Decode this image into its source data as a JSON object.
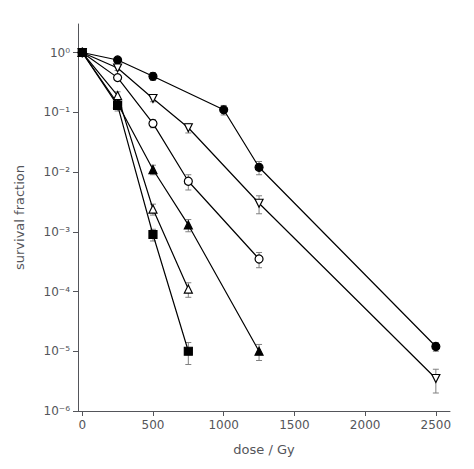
{
  "chart_data": {
    "type": "line",
    "xlabel": "dose / Gy",
    "ylabel": "survival fraction",
    "log": "y",
    "grid": false,
    "xlim": [
      -30,
      2600
    ],
    "ylim": [
      1e-06,
      3.0
    ],
    "xticks": [
      0,
      500,
      1000,
      1500,
      2000,
      2500
    ],
    "yticks": [
      {
        "value": 1e-06,
        "label": "10⁻⁶"
      },
      {
        "value": 1e-05,
        "label": "10⁻⁵"
      },
      {
        "value": 0.0001,
        "label": "10⁻⁴"
      },
      {
        "value": 0.001,
        "label": "10⁻³"
      },
      {
        "value": 0.01,
        "label": "10⁻²"
      },
      {
        "value": 0.1,
        "label": "10⁻¹"
      },
      {
        "value": 1,
        "label": "10⁰"
      }
    ],
    "series": [
      {
        "marker": "filled_circle",
        "color": "black",
        "x": [
          0,
          250,
          500,
          1000,
          1250,
          2500
        ],
        "values": [
          1.0,
          0.75,
          0.4,
          0.11,
          0.012,
          1.2e-05
        ],
        "yerr_lo": [
          0.1,
          0.08,
          0.06,
          0.02,
          0.003,
          2e-06
        ],
        "yerr_hi": [
          0.0,
          0.08,
          0.06,
          0.02,
          0.003,
          2e-06
        ]
      },
      {
        "marker": "open_triangle_down",
        "color": "black",
        "x": [
          0,
          250,
          500,
          750,
          1250,
          2500
        ],
        "values": [
          1.0,
          0.55,
          0.17,
          0.055,
          0.003,
          3.5e-06
        ],
        "yerr_lo": [
          0.1,
          0.05,
          0.02,
          0.01,
          0.001,
          1.5e-06
        ],
        "yerr_hi": [
          0.0,
          0.05,
          0.02,
          0.01,
          0.001,
          1.5e-06
        ]
      },
      {
        "marker": "open_circle",
        "color": "black",
        "x": [
          0,
          250,
          500,
          750,
          1250
        ],
        "values": [
          1.0,
          0.38,
          0.065,
          0.007,
          0.00035
        ],
        "yerr_lo": [
          0.1,
          0.04,
          0.01,
          0.002,
          0.0001
        ],
        "yerr_hi": [
          0.0,
          0.04,
          0.01,
          0.002,
          0.0001
        ]
      },
      {
        "marker": "filled_triangle_up",
        "color": "black",
        "x": [
          0,
          250,
          500,
          750,
          1250
        ],
        "values": [
          1.0,
          0.14,
          0.011,
          0.0013,
          1e-05
        ],
        "yerr_lo": [
          0.1,
          0.02,
          0.002,
          0.0003,
          3e-06
        ],
        "yerr_hi": [
          0.0,
          0.02,
          0.002,
          0.0003,
          3e-06
        ]
      },
      {
        "marker": "open_triangle_up",
        "color": "black",
        "x": [
          0,
          250,
          500,
          750
        ],
        "values": [
          1.0,
          0.19,
          0.0024,
          0.00011
        ],
        "yerr_lo": [
          0.1,
          0.03,
          0.0005,
          3e-05
        ],
        "yerr_hi": [
          0.0,
          0.03,
          0.0005,
          3e-05
        ]
      },
      {
        "marker": "filled_square",
        "color": "black",
        "x": [
          0,
          250,
          500,
          750
        ],
        "values": [
          1.0,
          0.13,
          0.0009,
          1e-05
        ],
        "yerr_lo": [
          0.1,
          0.025,
          0.0002,
          4e-06
        ],
        "yerr_hi": [
          0.0,
          0.025,
          0.0002,
          4e-06
        ]
      }
    ]
  }
}
